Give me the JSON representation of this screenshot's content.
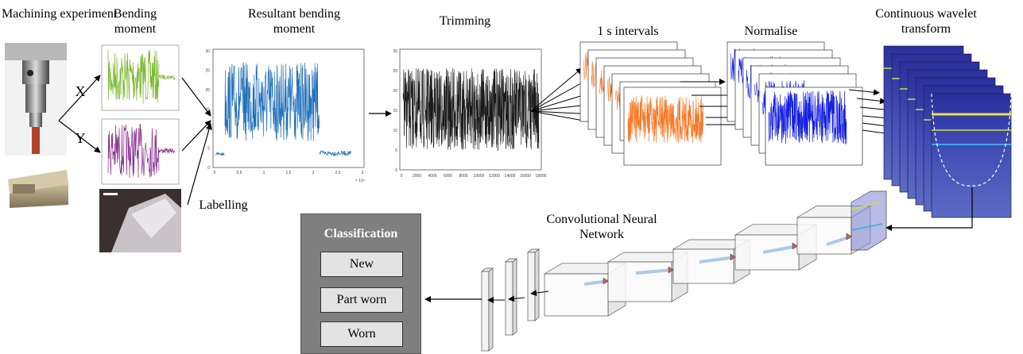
{
  "labels": {
    "machining": "Machining experiment",
    "bending": "Bending moment",
    "resultant": "Resultant bending moment",
    "trimming": "Trimming",
    "intervals": "1 s intervals",
    "normalise": "Normalise",
    "cwt": "Continuous wavelet transform",
    "cnn": "Convolutional Neural Network",
    "labelling": "Labelling",
    "axis_x": "X",
    "axis_y": "Y"
  },
  "classification": {
    "title": "Classification",
    "classes": [
      "New",
      "Part worn",
      "Worn"
    ]
  },
  "plots": {
    "resultant_yticks": [
      "30",
      "25",
      "20",
      "15",
      "10",
      "5",
      "0"
    ],
    "resultant_xticks": [
      "0",
      "0.5",
      "1",
      "1.5",
      "2",
      "2.5",
      "3"
    ],
    "resultant_xexp": "× 10⁴",
    "trimming_yticks": [
      "30",
      "25",
      "20",
      "15",
      "10",
      "5",
      "0"
    ],
    "trimming_xticks": [
      "0",
      "2000",
      "4000",
      "6000",
      "8000",
      "10000",
      "12000",
      "14000",
      "16000",
      "18000"
    ]
  },
  "colors": {
    "green": "#7ab82e",
    "purple": "#8a2f8f",
    "blue": "#1f6fb8",
    "black": "#1a1a1a",
    "orange": "#f57b2a",
    "normblue": "#1420e0",
    "cwt_bg": "#3a3fa8"
  }
}
